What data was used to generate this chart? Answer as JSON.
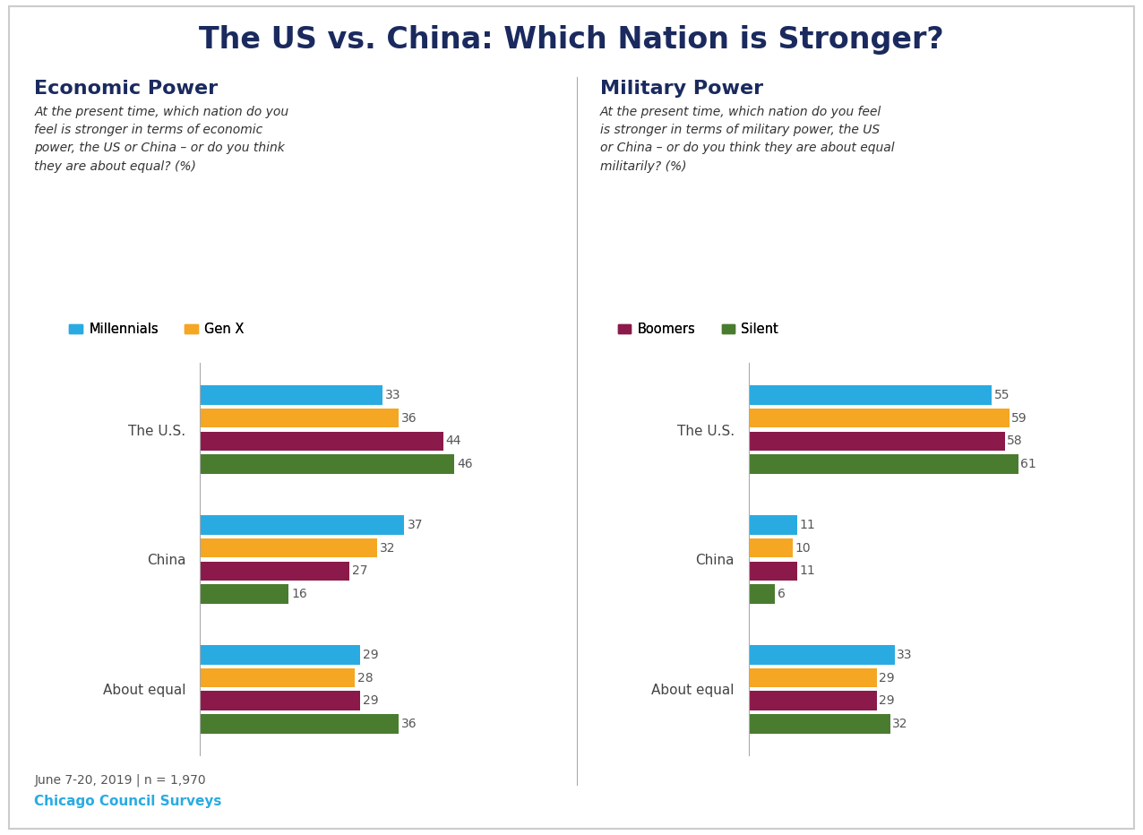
{
  "title": "The US vs. China: Which Nation is Stronger?",
  "title_color": "#1a2a5e",
  "title_fontsize": 24,
  "background_color": "#ffffff",
  "border_color": "#cccccc",
  "left_panel_title": "Economic Power",
  "left_panel_subtitle": "At the present time, which nation do you\nfeel is stronger in terms of economic\npower, the US or China – or do you think\nthey are about equal? (%)",
  "right_panel_title": "Military Power",
  "right_panel_subtitle": "At the present time, which nation do you feel\nis stronger in terms of military power, the US\nor China – or do you think they are about equal\nmilitarily? (%)",
  "categories": [
    "The U.S.",
    "China",
    "About equal"
  ],
  "generations": [
    "Millennials",
    "Gen X",
    "Boomers",
    "Silent"
  ],
  "gen_colors": [
    "#29abe2",
    "#f5a623",
    "#8b1a4a",
    "#4a7c2f"
  ],
  "economic_data": {
    "The U.S.": [
      33,
      36,
      44,
      46
    ],
    "China": [
      37,
      32,
      27,
      16
    ],
    "About equal": [
      29,
      28,
      29,
      36
    ]
  },
  "military_data": {
    "The U.S.": [
      55,
      59,
      58,
      61
    ],
    "China": [
      11,
      10,
      11,
      6
    ],
    "About equal": [
      33,
      29,
      29,
      32
    ]
  },
  "footer_text": "June 7-20, 2019 | n = 1,970",
  "footer_source": "Chicago Council Surveys",
  "footer_source_color": "#29abe2",
  "divider_color": "#aaaaaa"
}
